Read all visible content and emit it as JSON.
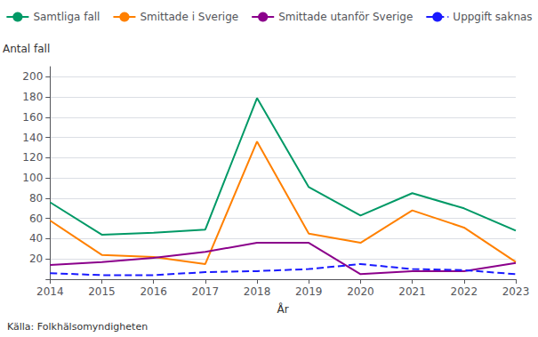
{
  "chart_data": {
    "type": "line",
    "xlabel": "År",
    "ylabel": "Antal fall",
    "annotations": [
      "Källa: Folkhälsomyndigheten"
    ],
    "categories": [
      "2014",
      "2015",
      "2016",
      "2017",
      "2018",
      "2019",
      "2020",
      "2021",
      "2022",
      "2023"
    ],
    "series": [
      {
        "name": "Samtliga fall",
        "color": "#009966",
        "line_style": "solid",
        "values": [
          76,
          44,
          46,
          49,
          179,
          91,
          63,
          85,
          70,
          48
        ]
      },
      {
        "name": "Smittade i Sverige",
        "color": "#FF8000",
        "line_style": "solid",
        "values": [
          58,
          24,
          22,
          15,
          136,
          45,
          36,
          68,
          51,
          17
        ]
      },
      {
        "name": "Smittade utanför Sverige",
        "color": "#8B008B",
        "line_style": "solid",
        "values": [
          14,
          17,
          21,
          27,
          36,
          36,
          5,
          8,
          8,
          16
        ]
      },
      {
        "name": "Uppgift saknas",
        "color": "#1A1AFF",
        "line_style": "dashed",
        "values": [
          6,
          4,
          4,
          7,
          8,
          10,
          15,
          10,
          9,
          5
        ]
      }
    ],
    "ylim": [
      0,
      210
    ],
    "yticks": [
      {
        "value": 0,
        "label": ""
      },
      20,
      40,
      60,
      80,
      100,
      120,
      140,
      160,
      180,
      200
    ],
    "grid": true,
    "legend": "top"
  }
}
